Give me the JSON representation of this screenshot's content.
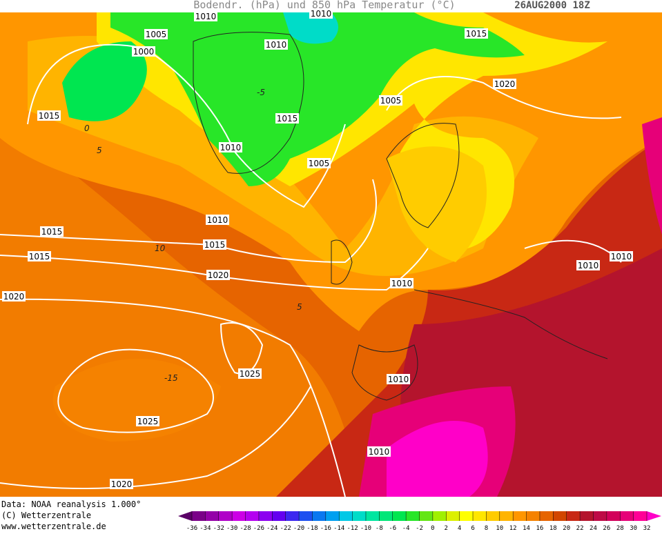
{
  "header": {
    "title": "Bodendr. (hPa) und 850 hPa Temperatur (°C)",
    "date": "26AUG2000 18Z"
  },
  "isobar_labels": [
    "1010",
    "1010",
    "1010",
    "1005",
    "1000",
    "1015",
    "1015",
    "1005",
    "1010",
    "1015",
    "1005",
    "1020",
    "1010",
    "1015",
    "1015",
    "1015",
    "1020",
    "1020",
    "1010",
    "1025",
    "1010",
    "1025",
    "1010",
    "1010",
    "1010",
    "1020"
  ],
  "temperature_labels": [
    "-5",
    "0",
    "5",
    "10",
    "5",
    "-15"
  ],
  "footer": {
    "data": "Data: NOAA reanalysis 1.000°",
    "copyright": "(C) Wetterzentrale",
    "url": "www.wetterzentrale.de"
  },
  "colorbar": {
    "ticks": [
      -36,
      -34,
      -32,
      -30,
      -28,
      -26,
      -24,
      -22,
      -20,
      -18,
      -16,
      -14,
      -12,
      -10,
      -8,
      -6,
      -4,
      -2,
      0,
      2,
      4,
      6,
      8,
      10,
      12,
      14,
      16,
      18,
      20,
      22,
      24,
      26,
      28,
      30,
      32
    ],
    "colors": [
      "#5a0066",
      "#7a0088",
      "#9400a8",
      "#b000c8",
      "#cc00e6",
      "#b400f0",
      "#8c00f0",
      "#6400f0",
      "#3c28f0",
      "#1e50f0",
      "#0a78f0",
      "#00a0f0",
      "#00c8e6",
      "#00dcc8",
      "#00e6a0",
      "#00e678",
      "#00e650",
      "#28e628",
      "#64e614",
      "#a0f000",
      "#dcf000",
      "#ffff00",
      "#ffe600",
      "#ffcc00",
      "#ffb400",
      "#ff9600",
      "#f58200",
      "#e66400",
      "#d24600",
      "#c82814",
      "#b4142d",
      "#be0a46",
      "#d2005a",
      "#e60078",
      "#ff0096",
      "#ff00c8"
    ]
  }
}
